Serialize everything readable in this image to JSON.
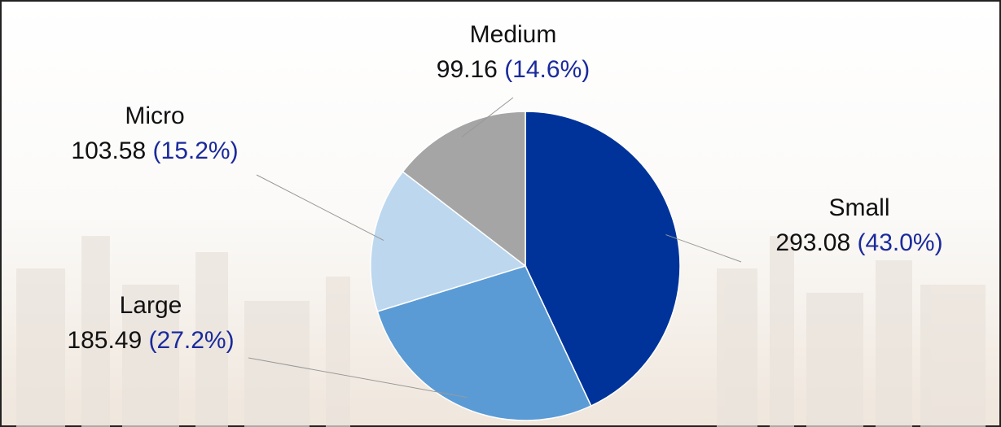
{
  "chart_data": {
    "type": "pie",
    "categories": [
      "Small",
      "Large",
      "Micro",
      "Medium"
    ],
    "values": [
      293.08,
      185.49,
      103.58,
      99.16
    ],
    "percent_labels": [
      "(43.0%)",
      "(27.2%)",
      "(15.2%)",
      "(14.6%)"
    ],
    "colors": [
      "#003399",
      "#5b9bd5",
      "#bdd7ee",
      "#a5a5a5"
    ]
  }
}
